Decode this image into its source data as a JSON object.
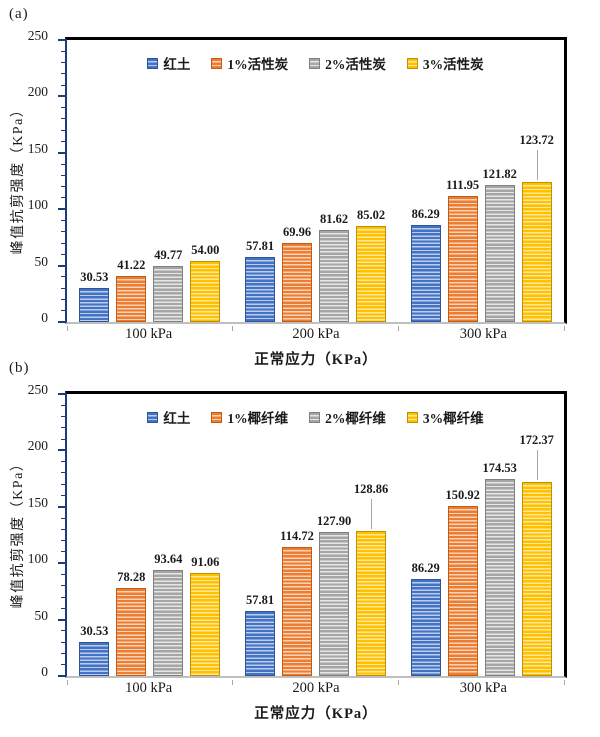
{
  "figure": {
    "background": "#ffffff",
    "frame_color": "#000000",
    "yaxis_color": "#1f3a77",
    "baseline_color": "#bfbfbf",
    "leader_line_color": "#a6a6a6"
  },
  "chart_data": [
    {
      "type": "bar",
      "panel_label": "(a)",
      "title": "",
      "xlabel": "正常应力（KPa）",
      "ylabel": "峰值抗剪强度（KPa）",
      "ylim": [
        0,
        250
      ],
      "yticks": [
        0,
        50,
        100,
        150,
        200,
        250
      ],
      "ytick_minor_interval": 10,
      "grid": false,
      "legend_position": "top-center-inside",
      "categories": [
        "100 kPa",
        "200 kPa",
        "300 kPa"
      ],
      "series": [
        {
          "name": "红土",
          "color": "#4472C4",
          "color_light": "#bccdec",
          "border": "#2e5597",
          "values": [
            30.53,
            57.81,
            86.29
          ],
          "labels": [
            "30.53",
            "57.81",
            "86.29"
          ],
          "callouts": [
            false,
            false,
            false
          ]
        },
        {
          "name": "1%活性炭",
          "color": "#ED7D31",
          "color_light": "#f9d4bb",
          "border": "#c55a11",
          "values": [
            41.22,
            69.96,
            111.95
          ],
          "labels": [
            "41.22",
            "69.96",
            "111.95"
          ],
          "callouts": [
            false,
            false,
            false
          ]
        },
        {
          "name": "2%活性炭",
          "color": "#A6A6A6",
          "color_light": "#e6e6e6",
          "border": "#808080",
          "values": [
            49.77,
            81.62,
            121.82
          ],
          "labels": [
            "49.77",
            "81.62",
            "121.82"
          ],
          "callouts": [
            false,
            false,
            false
          ]
        },
        {
          "name": "3%活性炭",
          "color": "#FFC000",
          "color_light": "#ffe89e",
          "border": "#bf9000",
          "values": [
            54.0,
            85.02,
            123.72
          ],
          "labels": [
            "54.00",
            "85.02",
            "123.72"
          ],
          "callouts": [
            false,
            false,
            true
          ]
        }
      ]
    },
    {
      "type": "bar",
      "panel_label": "(b)",
      "title": "",
      "xlabel": "正常应力（KPa）",
      "ylabel": "峰值抗剪强度（KPa）",
      "ylim": [
        0,
        250
      ],
      "yticks": [
        0,
        50,
        100,
        150,
        200,
        250
      ],
      "ytick_minor_interval": 10,
      "grid": false,
      "legend_position": "top-center-inside",
      "categories": [
        "100 kPa",
        "200 kPa",
        "300 kPa"
      ],
      "series": [
        {
          "name": "红土",
          "color": "#4472C4",
          "color_light": "#bccdec",
          "border": "#2e5597",
          "values": [
            30.53,
            57.81,
            86.29
          ],
          "labels": [
            "30.53",
            "57.81",
            "86.29"
          ],
          "callouts": [
            false,
            false,
            false
          ]
        },
        {
          "name": "1%椰纤维",
          "color": "#ED7D31",
          "color_light": "#f9d4bb",
          "border": "#c55a11",
          "values": [
            78.28,
            114.72,
            150.92
          ],
          "labels": [
            "78.28",
            "114.72",
            "150.92"
          ],
          "callouts": [
            false,
            false,
            false
          ]
        },
        {
          "name": "2%椰纤维",
          "color": "#A6A6A6",
          "color_light": "#e6e6e6",
          "border": "#808080",
          "values": [
            93.64,
            127.9,
            174.53
          ],
          "labels": [
            "93.64",
            "127.90",
            "174.53"
          ],
          "callouts": [
            false,
            false,
            false
          ]
        },
        {
          "name": "3%椰纤维",
          "color": "#FFC000",
          "color_light": "#ffe89e",
          "border": "#bf9000",
          "values": [
            91.06,
            128.86,
            172.37
          ],
          "labels": [
            "91.06",
            "128.86",
            "172.37"
          ],
          "callouts": [
            false,
            true,
            true
          ]
        }
      ]
    }
  ]
}
